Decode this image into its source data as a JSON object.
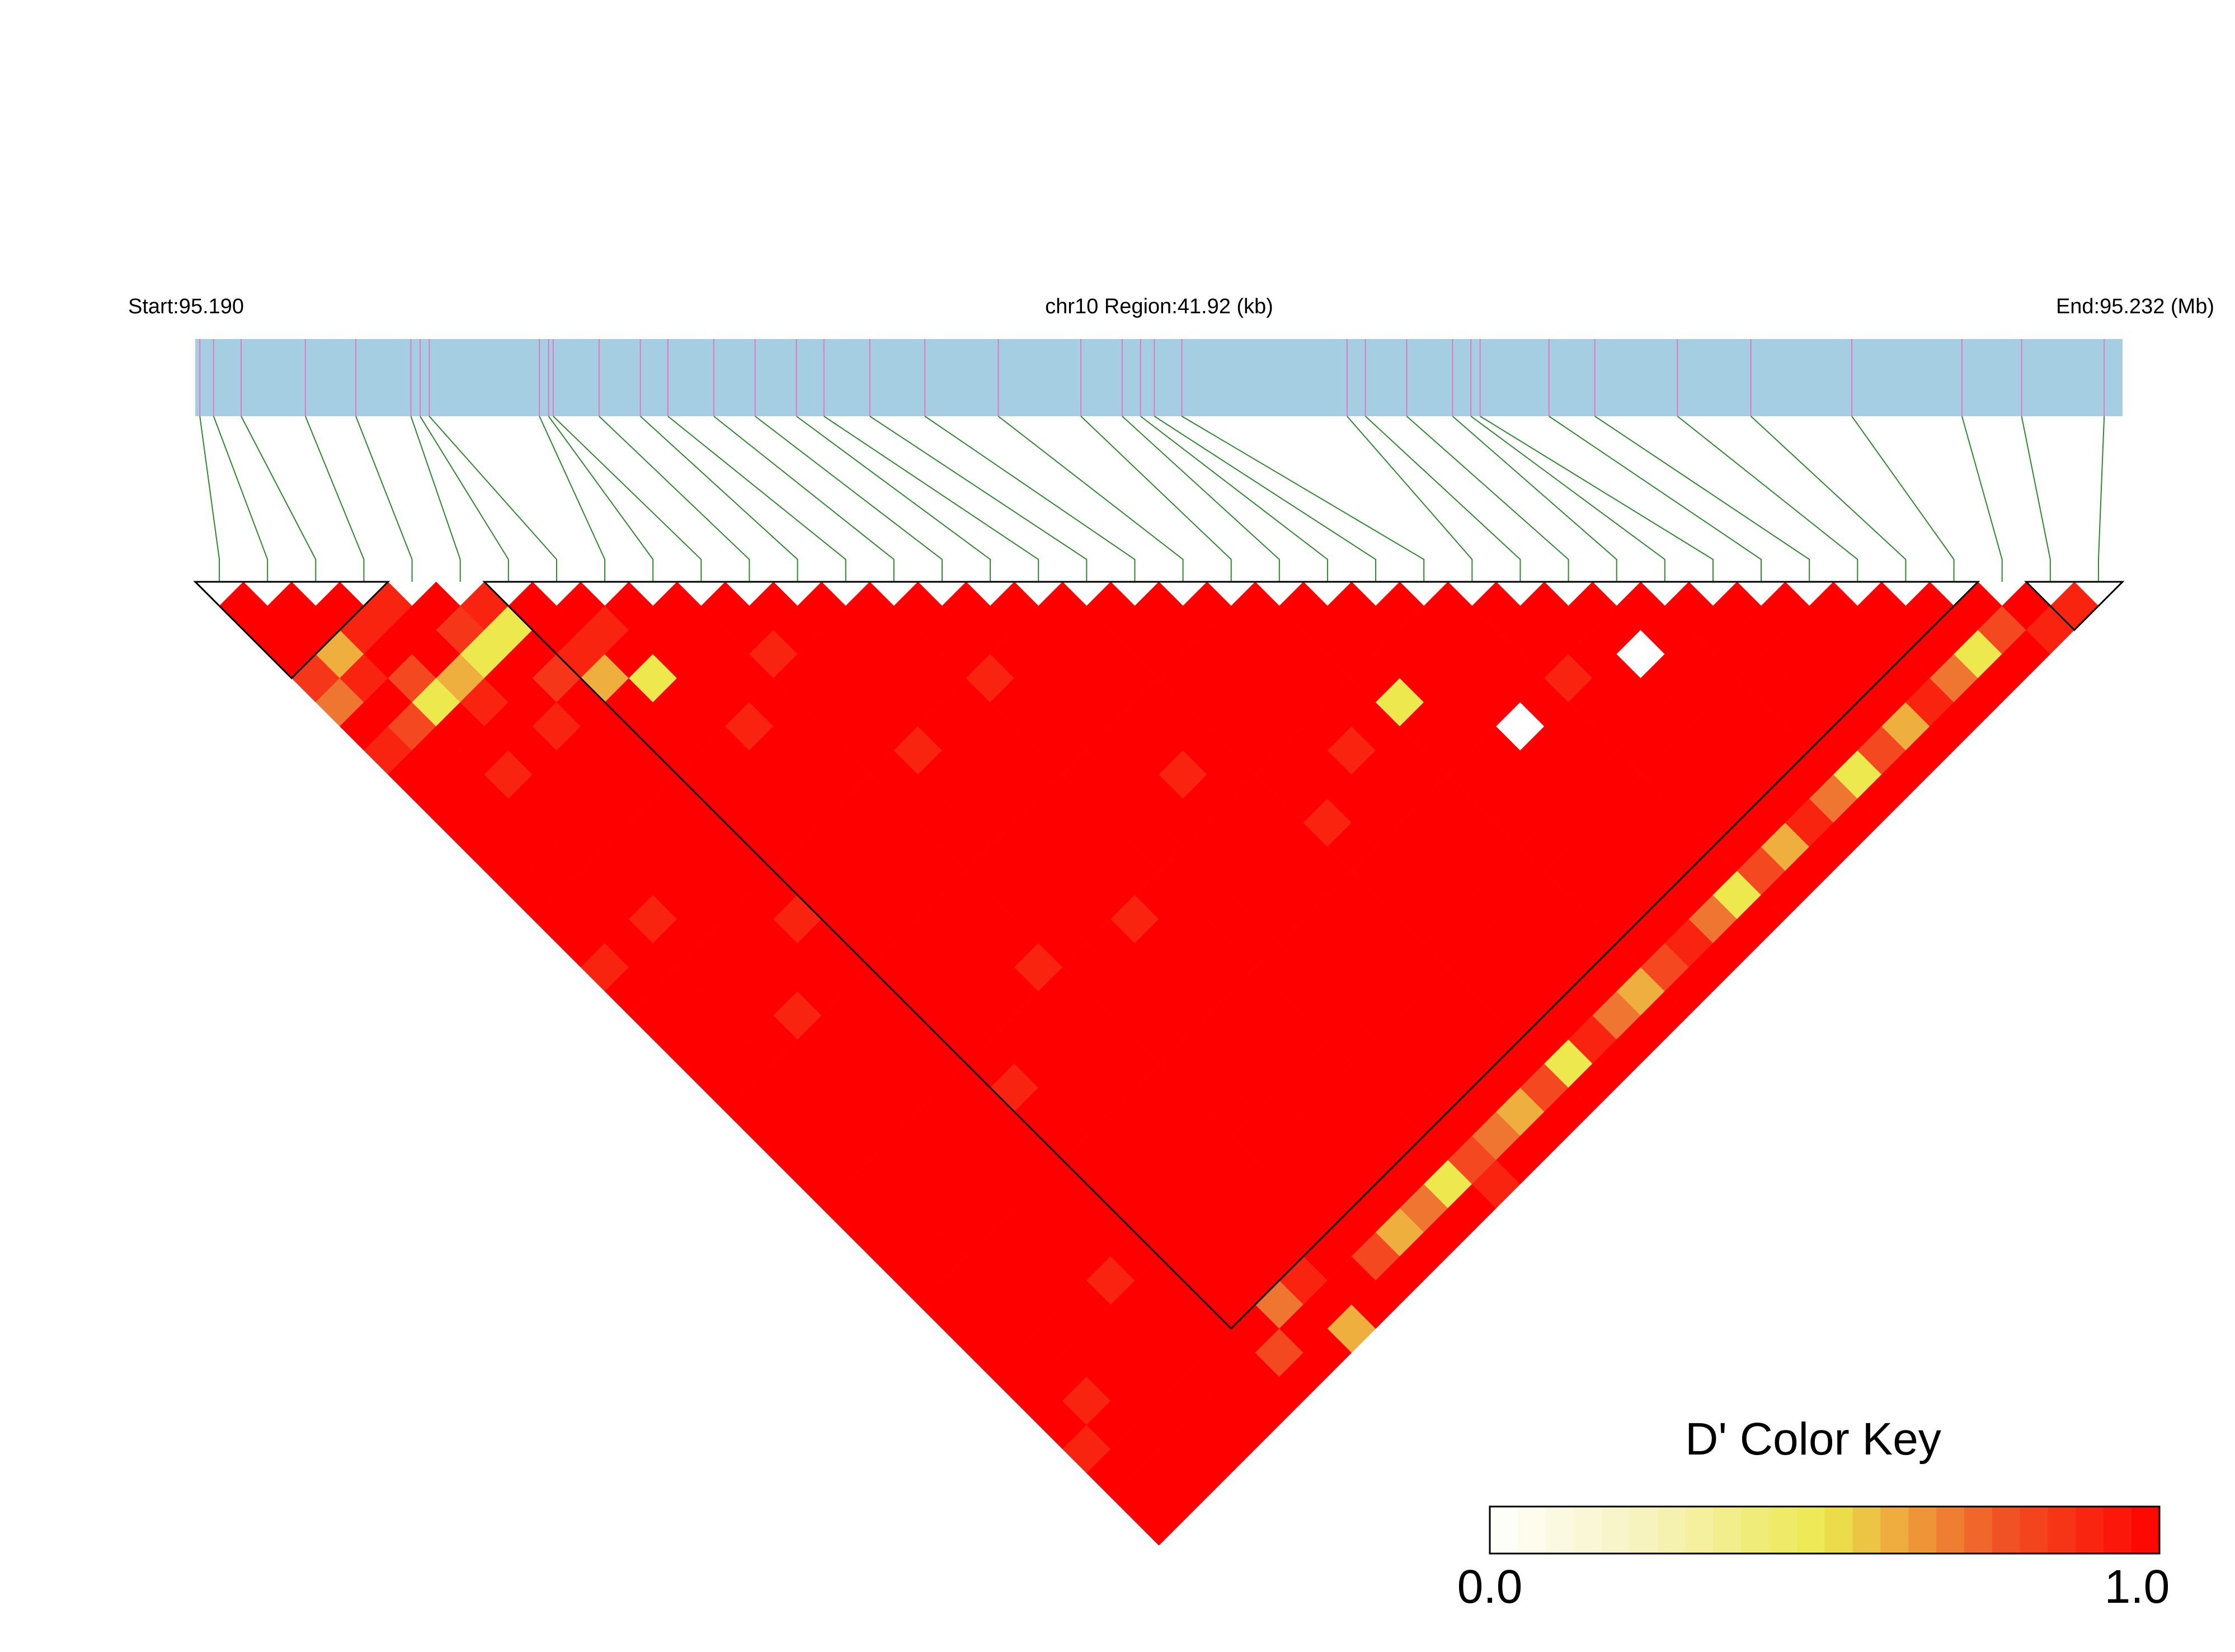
{
  "chart_data": {
    "type": "ld_heatmap",
    "start_label": "Start:95.190",
    "region_label": "chr10 Region:41.92 (kb)",
    "end_label": "End:95.232 (Mb)",
    "key_title": "D' Color Key",
    "xlim": [
      95.19,
      95.232
    ],
    "x": [
      95.1901,
      95.1904,
      95.191,
      95.1924,
      95.1935,
      95.1947,
      95.1949,
      95.1951,
      95.1975,
      95.1977,
      95.1978,
      95.1988,
      95.1997,
      95.2003,
      95.2013,
      95.2022,
      95.2031,
      95.2037,
      95.2047,
      95.2059,
      95.2075,
      95.2093,
      95.2102,
      95.2106,
      95.2109,
      95.2115,
      95.2151,
      95.2155,
      95.2164,
      95.2174,
      95.2178,
      95.218,
      95.2195,
      95.2205,
      95.2223,
      95.2239,
      95.2261,
      95.2285,
      95.2298,
      95.2316
    ],
    "bar_color": "#a6cee3",
    "snp_line_color": "#e377c2",
    "link_color": "#2a8a2a",
    "colorscale": [
      "#ffffff",
      "#f6f2b8",
      "#ece84e",
      "#f05a28",
      "#ff0000"
    ],
    "key_ticks": [
      {
        "value": 0,
        "label": "0.0"
      },
      {
        "value": 1,
        "label": "1.0"
      }
    ],
    "blocks": [
      [
        0,
        3
      ],
      [
        6,
        36
      ],
      [
        38,
        39
      ]
    ],
    "dprime": [
      [
        1,
        1,
        1,
        0.85,
        0.7,
        1,
        0.9,
        1,
        1,
        1,
        1,
        1,
        1,
        1,
        1,
        0.9,
        1,
        1,
        1,
        1,
        1,
        1,
        1,
        1,
        1,
        1,
        1,
        1,
        1,
        1,
        1,
        1,
        1,
        1,
        1,
        0.9,
        1,
        1,
        1
      ],
      [
        1,
        1,
        0.6,
        0.9,
        1,
        0.8,
        1,
        1,
        1,
        1,
        1,
        1,
        1,
        1,
        1,
        1,
        1,
        1,
        1,
        1,
        1,
        1,
        1,
        1,
        1,
        1,
        1,
        1,
        1,
        1,
        1,
        1,
        1,
        0.9,
        1,
        1,
        1,
        1
      ],
      [
        1,
        0.9,
        1,
        0.8,
        0.5,
        1,
        1,
        0.9,
        1,
        1,
        1,
        1,
        1,
        0.9,
        1,
        1,
        1,
        1,
        1,
        1,
        1,
        1,
        1,
        1,
        1,
        1,
        1,
        1,
        1,
        1,
        1,
        1,
        1,
        1,
        1,
        1,
        1
      ],
      [
        0.9,
        1,
        1,
        0.6,
        0.9,
        1,
        1,
        1,
        1,
        1,
        1,
        1,
        1,
        1,
        1,
        1,
        1,
        0.9,
        1,
        1,
        1,
        1,
        1,
        1,
        1,
        1,
        1,
        1,
        1,
        1,
        1,
        1,
        1,
        1,
        1,
        1
      ],
      [
        1,
        0.85,
        0.5,
        1,
        1,
        0.9,
        1,
        1,
        1,
        1,
        1,
        1,
        1,
        1,
        1,
        1,
        1,
        1,
        1,
        1,
        1,
        1,
        1,
        1,
        1,
        1,
        1,
        1,
        0.9,
        1,
        1,
        1,
        1,
        1,
        1
      ],
      [
        0.9,
        0.5,
        1,
        0.85,
        1,
        1,
        1,
        1,
        1,
        1,
        1,
        1,
        1,
        0.9,
        1,
        1,
        1,
        1,
        1,
        1,
        1,
        1,
        1,
        1,
        1,
        1,
        1,
        1,
        1,
        1,
        1,
        1,
        1,
        1
      ],
      [
        1,
        1,
        0.9,
        0.6,
        1,
        1,
        1,
        1,
        1,
        1,
        1,
        1,
        1,
        1,
        1,
        1,
        1,
        1,
        1,
        1,
        0.9,
        1,
        1,
        1,
        1,
        1,
        1,
        1,
        1,
        1,
        1,
        0.8,
        1
      ],
      [
        1,
        0.9,
        1,
        0.5,
        1,
        1,
        1,
        1,
        1,
        1,
        1,
        1,
        1,
        1,
        1,
        1,
        1,
        1,
        1,
        1,
        1,
        1,
        1,
        1,
        1,
        1,
        1,
        1,
        1,
        0.7,
        1,
        1
      ],
      [
        1,
        1,
        1,
        1,
        1,
        0.9,
        1,
        1,
        1,
        1,
        1,
        1,
        1,
        1,
        1,
        1,
        1,
        1,
        1,
        1,
        1,
        1,
        1,
        1,
        1,
        1,
        1,
        1,
        0.9,
        1,
        0.6
      ],
      [
        1,
        1,
        1,
        1,
        1,
        1,
        1,
        1,
        1,
        1,
        1,
        1,
        1,
        1,
        1,
        0.9,
        1,
        1,
        1,
        1,
        1,
        1,
        1,
        1,
        1,
        1,
        1,
        1,
        1,
        1
      ],
      [
        1,
        1,
        0.9,
        1,
        1,
        1,
        1,
        1,
        1,
        1,
        1,
        1,
        1,
        1,
        1,
        1,
        1,
        1,
        1,
        1,
        1,
        1,
        1,
        1,
        1,
        1,
        1,
        0.8,
        1
      ],
      [
        1,
        1,
        1,
        1,
        1,
        1,
        0.9,
        1,
        1,
        1,
        1,
        1,
        1,
        1,
        1,
        1,
        1,
        1,
        1,
        1,
        1,
        1,
        1,
        1,
        1,
        1,
        0.6,
        1
      ],
      [
        1,
        1,
        1,
        1,
        1,
        1,
        1,
        1,
        1,
        1,
        1,
        1,
        1,
        0.9,
        1,
        1,
        1,
        1,
        1,
        1,
        1,
        1,
        1,
        1,
        1,
        0.7,
        1
      ],
      [
        1,
        1,
        1,
        1,
        1,
        1,
        1,
        1,
        1,
        1,
        1,
        1,
        1,
        1,
        1,
        1,
        1,
        1,
        1,
        1,
        1,
        1,
        1,
        1,
        0.5,
        1
      ],
      [
        1,
        1,
        1,
        0.9,
        1,
        1,
        1,
        1,
        1,
        1,
        1,
        1,
        1,
        1,
        1,
        1,
        1,
        1,
        1,
        1,
        1,
        1,
        1,
        0.8,
        0.9
      ],
      [
        1,
        1,
        1,
        1,
        1,
        1,
        1,
        1,
        1,
        1,
        1,
        1,
        1,
        1,
        1,
        1,
        1,
        1,
        1,
        1,
        1,
        1,
        0.7,
        1
      ],
      [
        1,
        1,
        1,
        1,
        1,
        1,
        1,
        0.9,
        1,
        1,
        1,
        1,
        1,
        1,
        1,
        1,
        1,
        1,
        1,
        1,
        1,
        0.6,
        1
      ],
      [
        1,
        1,
        1,
        1,
        1,
        1,
        1,
        1,
        1,
        1,
        1,
        1,
        1,
        1,
        1,
        1,
        1,
        1,
        1,
        1,
        0.8,
        1
      ],
      [
        1,
        1,
        1,
        1,
        1,
        1,
        1,
        1,
        1,
        0.9,
        1,
        1,
        1,
        1,
        1,
        1,
        1,
        1,
        1,
        0.5,
        1
      ],
      [
        1,
        1,
        1,
        1,
        1,
        1,
        1,
        1,
        1,
        1,
        1,
        1,
        1,
        1,
        1,
        1,
        1,
        1,
        0.9,
        1
      ],
      [
        1,
        1,
        1,
        1,
        1,
        1,
        0.9,
        1,
        1,
        1,
        1,
        1,
        1,
        1,
        1,
        1,
        1,
        0.7,
        1
      ],
      [
        1,
        1,
        1,
        1,
        1,
        1,
        1,
        1,
        1,
        1,
        1,
        1,
        1,
        1,
        1,
        1,
        0.6,
        1
      ],
      [
        1,
        1,
        1,
        1,
        0.5,
        1,
        1,
        1,
        1,
        1,
        1,
        1,
        1,
        1,
        1,
        0.8,
        1
      ],
      [
        1,
        1,
        1,
        1,
        1,
        1,
        1,
        1,
        1,
        1,
        1,
        1,
        1,
        1,
        0.9,
        1
      ],
      [
        1,
        1,
        1,
        1,
        1,
        0,
        1,
        1,
        1,
        1,
        1,
        1,
        1,
        0.7,
        1
      ],
      [
        1,
        1,
        1,
        1,
        1,
        1,
        1,
        1,
        1,
        1,
        1,
        1,
        0.5,
        1
      ],
      [
        1,
        1,
        1,
        0.9,
        1,
        1,
        1,
        1,
        1,
        1,
        1,
        0.8,
        1
      ],
      [
        1,
        1,
        1,
        1,
        1,
        1,
        1,
        1,
        1,
        1,
        0.6,
        1
      ],
      [
        1,
        1,
        0,
        1,
        1,
        1,
        1,
        1,
        1,
        0.9,
        1
      ],
      [
        1,
        1,
        1,
        1,
        1,
        1,
        1,
        1,
        0.7,
        1
      ],
      [
        1,
        1,
        1,
        1,
        1,
        1,
        1,
        0.5,
        1
      ],
      [
        1,
        1,
        1,
        1,
        1,
        1,
        0.8,
        1
      ],
      [
        1,
        1,
        1,
        1,
        1,
        0.6,
        1
      ],
      [
        1,
        1,
        1,
        1,
        0.9,
        1
      ],
      [
        1,
        1,
        1,
        0.7,
        1
      ],
      [
        1,
        1,
        0.5,
        1
      ],
      [
        1,
        0.8,
        1
      ],
      [
        1,
        0.9
      ],
      [
        0.9
      ]
    ]
  }
}
